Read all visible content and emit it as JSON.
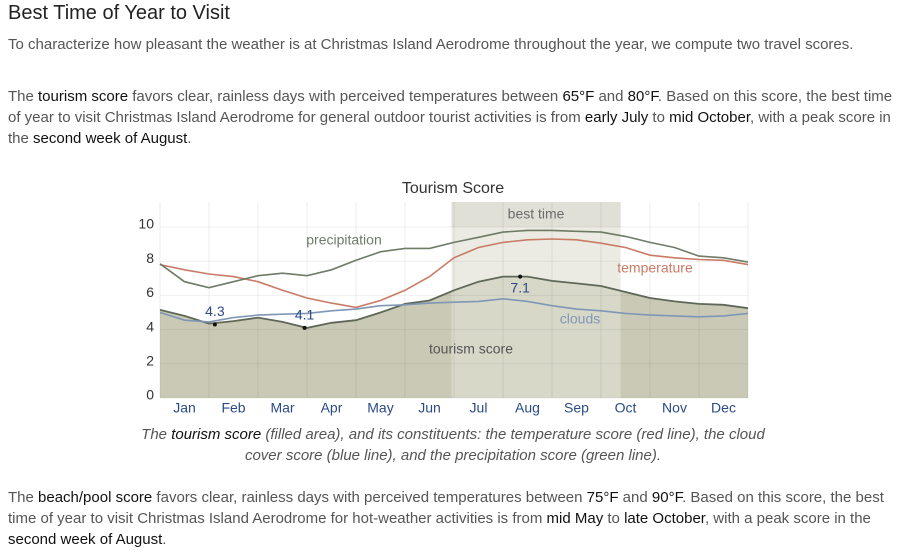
{
  "title": "Best Time of Year to Visit",
  "intro": [
    "To characterize how pleasant the weather is at Christmas Island Aerodrome throughout the year, we compute two travel scores."
  ],
  "tourism_paragraph": [
    "The ",
    "tourism score",
    " favors clear, rainless days with perceived temperatures between ",
    "65°F",
    " and ",
    "80°F",
    ". Based on this score, the best time of year to visit Christmas Island Aerodrome for general outdoor tourist activities is from ",
    "early July",
    " to ",
    "mid October",
    ", with a peak score in the ",
    "second week of August",
    "."
  ],
  "chart_data": {
    "type": "line",
    "title": "Tourism Score",
    "categories": [
      null,
      "Jan",
      null,
      "Feb",
      null,
      "Mar",
      null,
      "Apr",
      null,
      "May",
      null,
      "Jun",
      null,
      "Jul",
      null,
      "Aug",
      null,
      "Sep",
      null,
      "Oct",
      null,
      "Nov",
      null,
      "Dec",
      null
    ],
    "ylim": [
      0,
      10
    ],
    "yticks": [
      0,
      2,
      4,
      6,
      8,
      10
    ],
    "best_time": {
      "label": "best time",
      "range": [
        11.9,
        18.8
      ]
    },
    "series": [
      {
        "name": "tourism score",
        "color": "#5f6858",
        "fill": "#c9c9b5",
        "values": [
          5.15,
          4.8,
          4.35,
          4.5,
          4.7,
          4.45,
          4.1,
          4.4,
          4.55,
          5.0,
          5.5,
          5.7,
          6.3,
          6.8,
          7.1,
          7.1,
          6.85,
          6.7,
          6.55,
          6.2,
          5.85,
          5.65,
          5.5,
          5.45,
          5.25
        ]
      },
      {
        "name": "temperature",
        "color": "#c97b66",
        "values": [
          7.8,
          7.5,
          7.25,
          7.1,
          6.8,
          6.3,
          5.85,
          5.55,
          5.3,
          5.7,
          6.3,
          7.1,
          8.2,
          8.8,
          9.1,
          9.25,
          9.3,
          9.25,
          9.05,
          8.8,
          8.35,
          8.2,
          8.1,
          8.05,
          7.8
        ]
      },
      {
        "name": "clouds",
        "color": "#7f96b6",
        "values": [
          5.0,
          4.55,
          4.45,
          4.7,
          4.85,
          4.9,
          4.95,
          5.1,
          5.2,
          5.4,
          5.45,
          5.55,
          5.6,
          5.65,
          5.8,
          5.65,
          5.4,
          5.2,
          5.1,
          4.95,
          4.85,
          4.8,
          4.75,
          4.8,
          4.95
        ]
      },
      {
        "name": "precipitation",
        "color": "#6f7b67",
        "values": [
          7.85,
          6.8,
          6.45,
          6.8,
          7.15,
          7.3,
          7.15,
          7.5,
          8.05,
          8.55,
          8.75,
          8.75,
          9.1,
          9.4,
          9.7,
          9.8,
          9.8,
          9.75,
          9.7,
          9.45,
          9.1,
          8.8,
          8.3,
          8.2,
          7.95
        ]
      }
    ],
    "annotations": [
      {
        "x": 2.24,
        "y": 4.3
      },
      {
        "x": 5.9,
        "y": 4.1
      },
      {
        "x": 14.7,
        "y": 7.1
      }
    ]
  },
  "caption": [
    "The ",
    "tourism score",
    " (filled area), and its constituents: the temperature score (red line), the cloud cover score (blue line), and the precipitation score (green line)."
  ],
  "beach_paragraph": [
    "The ",
    "beach/pool score",
    " favors clear, rainless days with perceived temperatures between ",
    "75°F",
    " and ",
    "90°F",
    ". Based on this score, the best time of year to visit Christmas Island Aerodrome for hot-weather activities is from ",
    "mid May",
    " to ",
    "late October",
    ", with a peak score in the ",
    "second week of August",
    "."
  ]
}
